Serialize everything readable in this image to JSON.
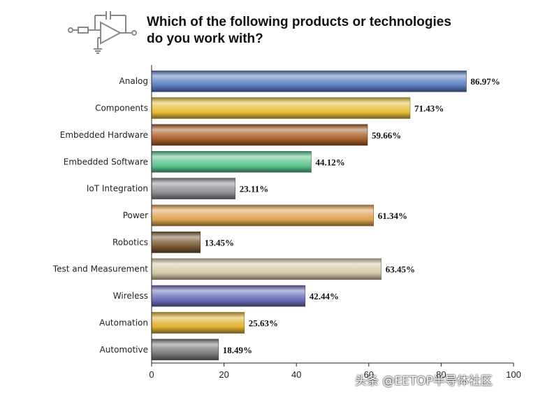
{
  "title_line1": "Which of the following products or technologies",
  "title_line2": "do you work with?",
  "watermark": "头条 @EETOP半导体社区",
  "logo_icon": "op-amp-circuit-icon",
  "chart_data": {
    "type": "bar",
    "orientation": "horizontal",
    "title": "Which of the following products or technologies do you work with?",
    "xlabel": "",
    "ylabel": "",
    "xlim": [
      0,
      100
    ],
    "xticks": [
      "0",
      "20",
      "40",
      "60",
      "80",
      "100"
    ],
    "grid": false,
    "categories": [
      "Analog",
      "Components",
      "Embedded Hardware",
      "Embedded Software",
      "IoT Integration",
      "Power",
      "Robotics",
      "Test and Measurement",
      "Wireless",
      "Automation",
      "Automotive"
    ],
    "values": [
      86.97,
      71.43,
      59.66,
      44.12,
      23.11,
      61.34,
      13.45,
      63.45,
      42.44,
      25.63,
      18.49
    ],
    "value_labels": [
      "86.97%",
      "71.43%",
      "59.66%",
      "44.12%",
      "23.11%",
      "61.34%",
      "13.45%",
      "63.45%",
      "42.44%",
      "25.63%",
      "18.49%"
    ],
    "colors": [
      "#5b7fc0",
      "#e7bd3a",
      "#a8602a",
      "#5dc48d",
      "#8d8f93",
      "#e0a050",
      "#7a5a35",
      "#d4c8a8",
      "#6a6fb8",
      "#e0b030",
      "#7b7b7b"
    ]
  }
}
